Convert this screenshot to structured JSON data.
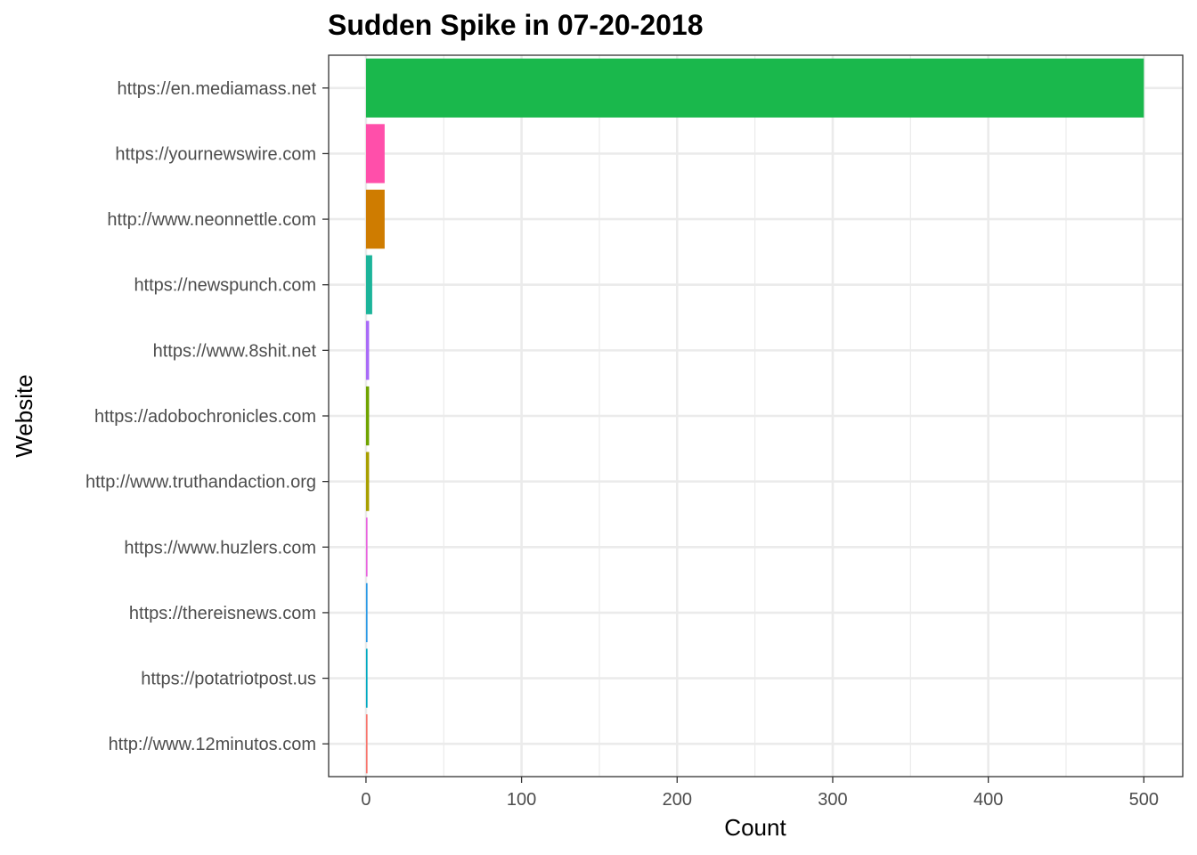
{
  "chart_data": {
    "type": "bar",
    "orientation": "horizontal",
    "title": "Sudden Spike in 07-20-2018",
    "xlabel": "Count",
    "ylabel": "Website",
    "xlim": [
      -24,
      525
    ],
    "xticks": [
      0,
      100,
      200,
      300,
      400,
      500
    ],
    "grid": true,
    "legend": "none",
    "categories": [
      "https://en.mediamass.net",
      "https://yournewswire.com",
      "http://www.neonnettle.com",
      "https://newspunch.com",
      "https://www.8shit.net",
      "https://adobochronicles.com",
      "http://www.truthandaction.org",
      "https://www.huzlers.com",
      "https://thereisnews.com",
      "https://potatriotpost.us",
      "http://www.12minutos.com"
    ],
    "values": [
      500,
      12,
      12,
      4,
      2,
      2,
      2,
      1,
      1,
      1,
      1
    ],
    "colors": [
      "#1AB84C",
      "#FF4FAA",
      "#CF7C00",
      "#1CB49A",
      "#A96BF8",
      "#6FA300",
      "#A89F00",
      "#E964DF",
      "#2B9AE6",
      "#00A9C1",
      "#F8766D"
    ]
  }
}
